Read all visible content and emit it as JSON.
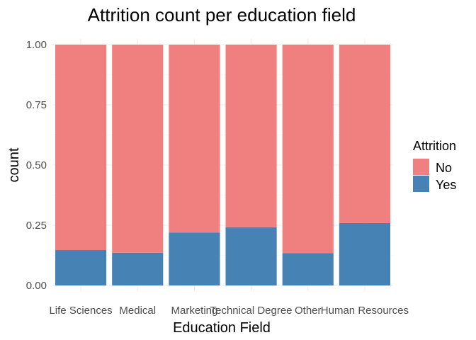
{
  "chart_data": {
    "type": "bar",
    "stacked": true,
    "title": "Attrition count per education field",
    "xlabel": "Education Field",
    "ylabel": "count",
    "ylim": [
      0,
      1
    ],
    "yticks": [
      "0.00",
      "0.25",
      "0.50",
      "0.75",
      "1.00"
    ],
    "grid": true,
    "legend_position": "right",
    "legend_title": "Attrition",
    "categories": [
      "Life Sciences",
      "Medical",
      "Marketing",
      "Technical Degree",
      "Other",
      "Human Resources"
    ],
    "series": [
      {
        "name": "No",
        "color": "#F08080",
        "values": [
          0.853,
          0.864,
          0.78,
          0.758,
          0.866,
          0.741
        ]
      },
      {
        "name": "Yes",
        "color": "#4682B4",
        "values": [
          0.147,
          0.136,
          0.22,
          0.242,
          0.134,
          0.259
        ]
      }
    ]
  }
}
